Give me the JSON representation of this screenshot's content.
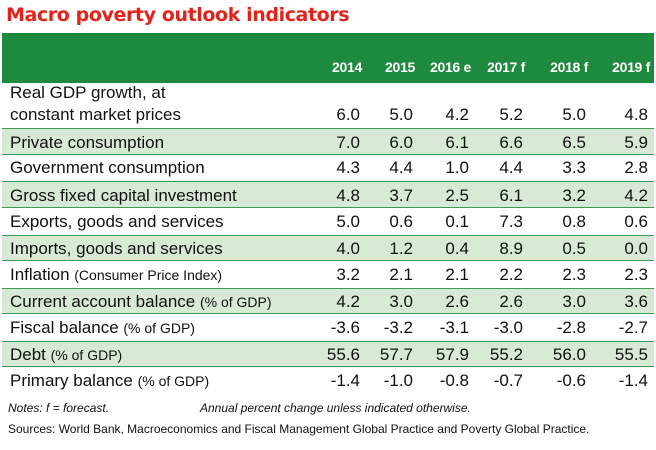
{
  "title": "Macro poverty outlook indicators",
  "years": [
    "2014",
    "2015",
    "2016 e",
    "2017 f",
    "2018 f",
    "2019 f"
  ],
  "rows": [
    {
      "label_line1": "Real GDP growth, at",
      "label": "constant market prices",
      "sub": "",
      "values": [
        "6.0",
        "5.0",
        "4.2",
        "5.2",
        "5.0",
        "4.8"
      ]
    },
    {
      "label": "Private consumption",
      "sub": "",
      "values": [
        "7.0",
        "6.0",
        "6.1",
        "6.6",
        "6.5",
        "5.9"
      ]
    },
    {
      "label": "Government consumption",
      "sub": "",
      "values": [
        "4.3",
        "4.4",
        "1.0",
        "4.4",
        "3.3",
        "2.8"
      ]
    },
    {
      "label": "Gross fixed capital investment",
      "sub": "",
      "values": [
        "4.8",
        "3.7",
        "2.5",
        "6.1",
        "3.2",
        "4.2"
      ]
    },
    {
      "label": "Exports, goods and services",
      "sub": "",
      "values": [
        "5.0",
        "0.6",
        "0.1",
        "7.3",
        "0.8",
        "0.6"
      ]
    },
    {
      "label": "Imports, goods and services",
      "sub": "",
      "values": [
        "4.0",
        "1.2",
        "0.4",
        "8.9",
        "0.5",
        "0.0"
      ]
    },
    {
      "label": "Inflation ",
      "sub": "(Consumer Price Index)",
      "values": [
        "3.2",
        "2.1",
        "2.1",
        "2.2",
        "2.3",
        "2.3"
      ]
    },
    {
      "label": "Current account balance ",
      "sub": "(% of GDP)",
      "values": [
        "4.2",
        "3.0",
        "2.6",
        "2.6",
        "3.0",
        "3.6"
      ]
    },
    {
      "label": "Fiscal balance ",
      "sub": "(% of GDP)",
      "values": [
        "-3.6",
        "-3.2",
        "-3.1",
        "-3.0",
        "-2.8",
        "-2.7"
      ]
    },
    {
      "label": "Debt ",
      "sub": "(% of GDP)",
      "values": [
        "55.6",
        "57.7",
        "57.9",
        "55.2",
        "56.0",
        "55.5"
      ]
    },
    {
      "label": "Primary balance ",
      "sub": "(% of GDP)",
      "values": [
        "-1.4",
        "-1.0",
        "-0.8",
        "-0.7",
        "-0.6",
        "-1.4"
      ]
    }
  ],
  "notes": "Notes: f = forecast.",
  "notes_annual": "Annual percent change unless indicated otherwise.",
  "sources": "Sources: World Bank, Macroeconomics and Fiscal Management Global Practice and Poverty Global Practice.",
  "colors": {
    "title": "#e2231a",
    "header_band": "#1e8a3e",
    "alt_row": "#d8ead6",
    "alt_row_border": "#3f9a55"
  }
}
